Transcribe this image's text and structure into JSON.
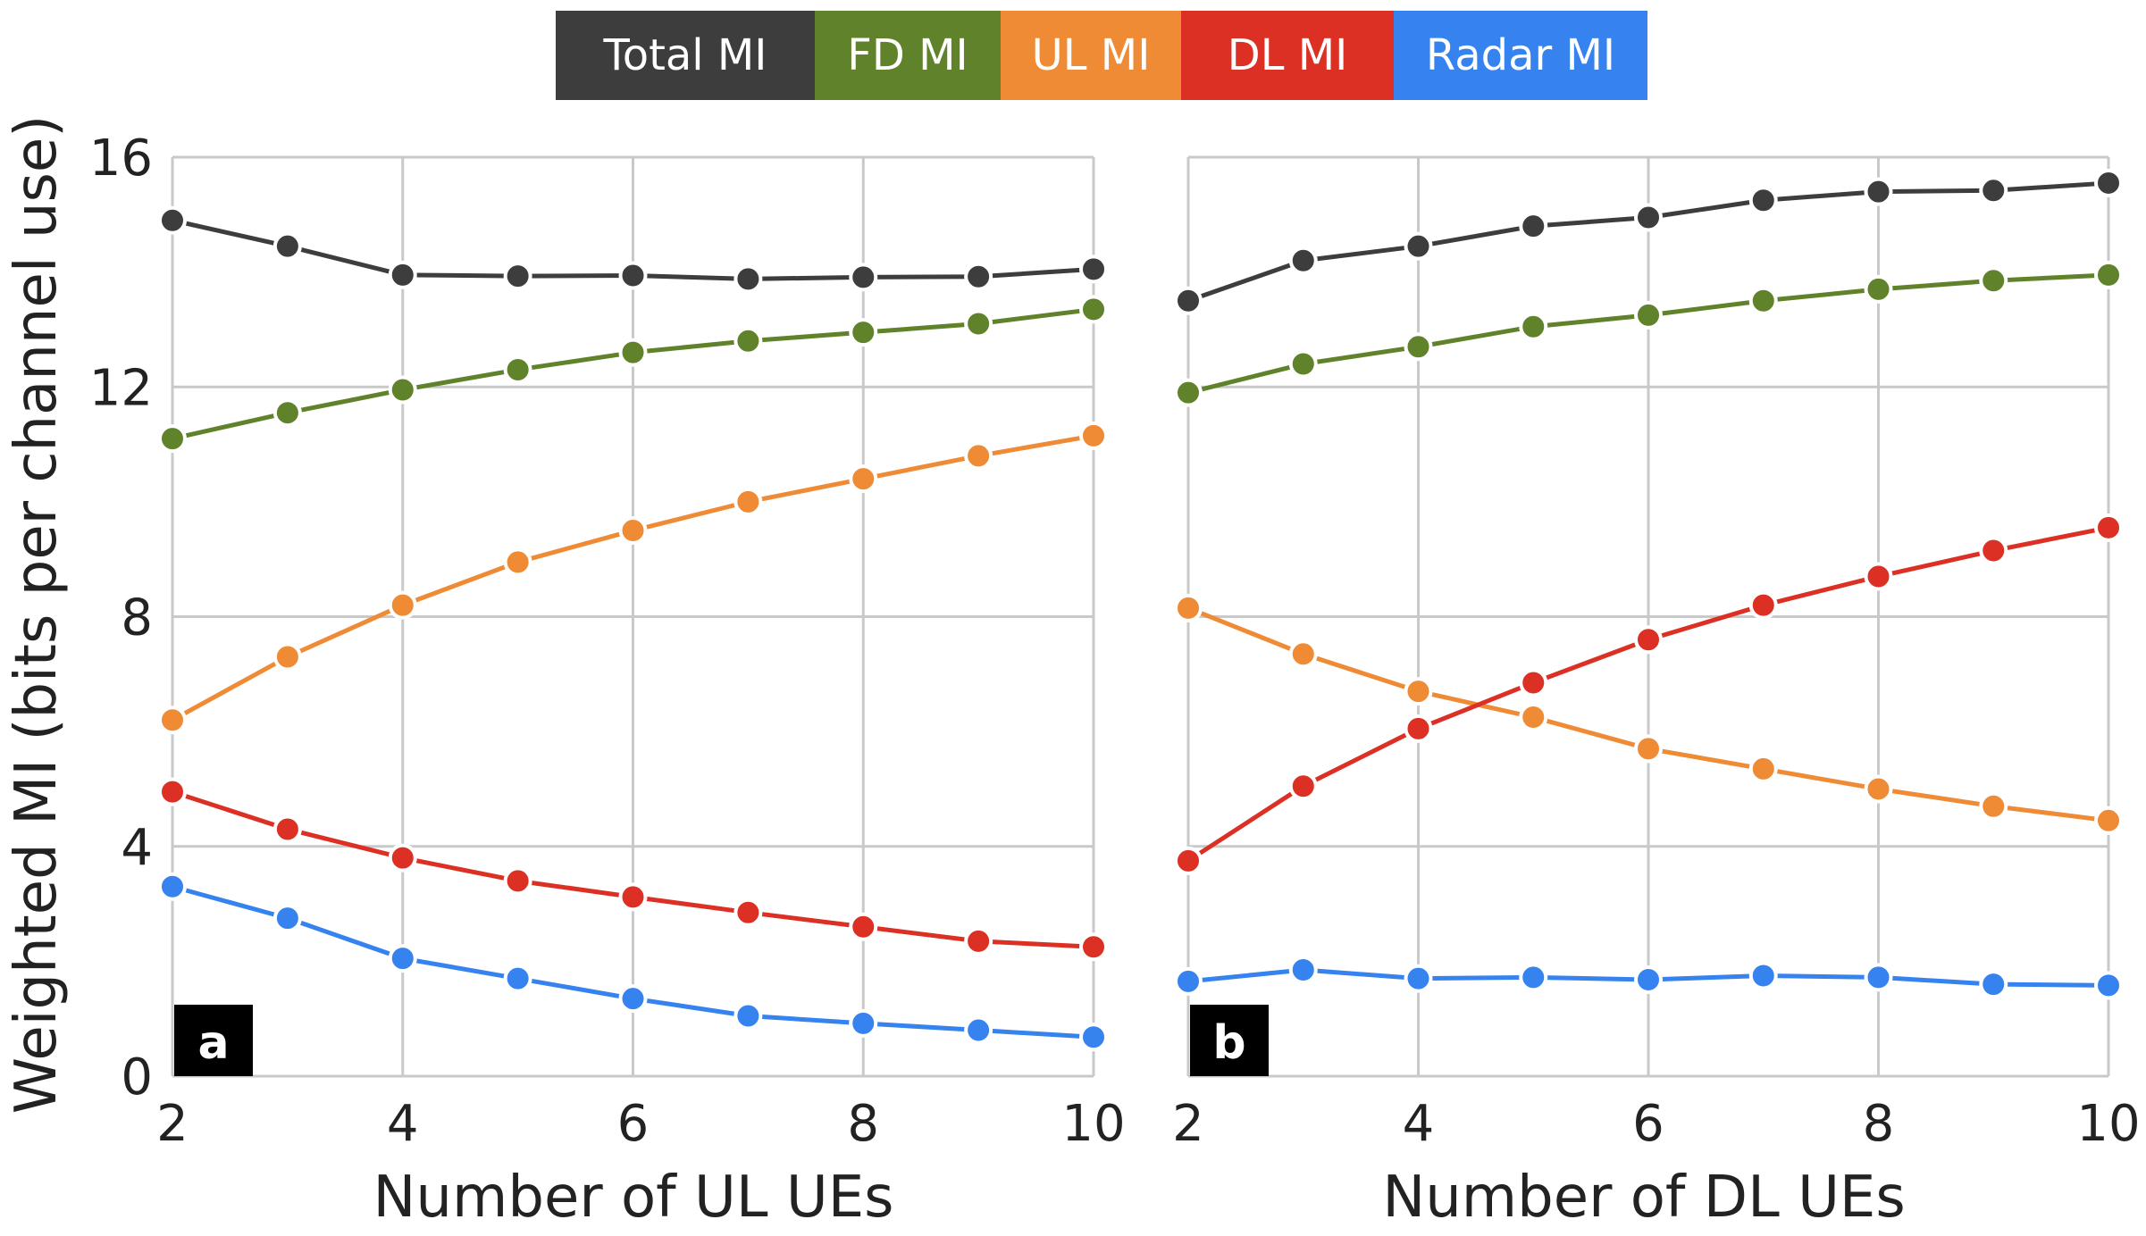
{
  "legend": [
    {
      "label": "Total MI",
      "color": "#3d3d3d"
    },
    {
      "label": "FD MI",
      "color": "#5f822a"
    },
    {
      "label": "UL MI",
      "color": "#ef8a35"
    },
    {
      "label": "DL MI",
      "color": "#dc3024"
    },
    {
      "label": "Radar MI",
      "color": "#3683ef"
    }
  ],
  "chart_data": [
    {
      "type": "line",
      "panel_label": "a",
      "xlabel": "Number of UL UEs",
      "ylabel": "Weighted MI (bits per channel use)",
      "x": [
        2,
        3,
        4,
        5,
        6,
        7,
        8,
        9,
        10
      ],
      "xlim": [
        2,
        10
      ],
      "ylim": [
        0,
        16
      ],
      "xticks": [
        "2",
        "4",
        "6",
        "8",
        "10"
      ],
      "yticks": [
        "0",
        "4",
        "8",
        "12",
        "16"
      ],
      "grid": true,
      "series": [
        {
          "name": "Total MI",
          "color": "#3d3d3d",
          "values": [
            14.9,
            14.45,
            13.95,
            13.93,
            13.94,
            13.88,
            13.91,
            13.92,
            14.05
          ]
        },
        {
          "name": "FD MI",
          "color": "#5f822a",
          "values": [
            11.1,
            11.55,
            11.95,
            12.3,
            12.6,
            12.8,
            12.95,
            13.1,
            13.35
          ]
        },
        {
          "name": "UL MI",
          "color": "#ef8a35",
          "values": [
            6.2,
            7.3,
            8.2,
            8.95,
            9.5,
            10.0,
            10.4,
            10.8,
            11.15
          ]
        },
        {
          "name": "DL MI",
          "color": "#dc3024",
          "values": [
            4.95,
            4.3,
            3.8,
            3.4,
            3.12,
            2.85,
            2.6,
            2.35,
            2.25
          ]
        },
        {
          "name": "Radar MI",
          "color": "#3683ef",
          "values": [
            3.3,
            2.75,
            2.05,
            1.7,
            1.35,
            1.05,
            0.92,
            0.8,
            0.68
          ]
        }
      ]
    },
    {
      "type": "line",
      "panel_label": "b",
      "xlabel": "Number of DL UEs",
      "ylabel": "",
      "x": [
        2,
        3,
        4,
        5,
        6,
        7,
        8,
        9,
        10
      ],
      "xlim": [
        2,
        10
      ],
      "ylim": [
        0,
        16
      ],
      "xticks": [
        "2",
        "4",
        "6",
        "8",
        "10"
      ],
      "yticks": [],
      "grid": true,
      "series": [
        {
          "name": "Total MI",
          "color": "#3d3d3d",
          "values": [
            13.5,
            14.2,
            14.45,
            14.8,
            14.95,
            15.25,
            15.4,
            15.42,
            15.55
          ]
        },
        {
          "name": "FD MI",
          "color": "#5f822a",
          "values": [
            11.9,
            12.4,
            12.7,
            13.05,
            13.25,
            13.5,
            13.7,
            13.85,
            13.95
          ]
        },
        {
          "name": "UL MI",
          "color": "#ef8a35",
          "values": [
            8.15,
            7.35,
            6.7,
            6.25,
            5.7,
            5.35,
            5.0,
            4.7,
            4.45
          ]
        },
        {
          "name": "DL MI",
          "color": "#dc3024",
          "values": [
            3.75,
            5.05,
            6.05,
            6.85,
            7.6,
            8.2,
            8.7,
            9.15,
            9.55
          ]
        },
        {
          "name": "Radar MI",
          "color": "#3683ef",
          "values": [
            1.65,
            1.85,
            1.7,
            1.72,
            1.68,
            1.75,
            1.72,
            1.6,
            1.58
          ]
        }
      ]
    }
  ]
}
